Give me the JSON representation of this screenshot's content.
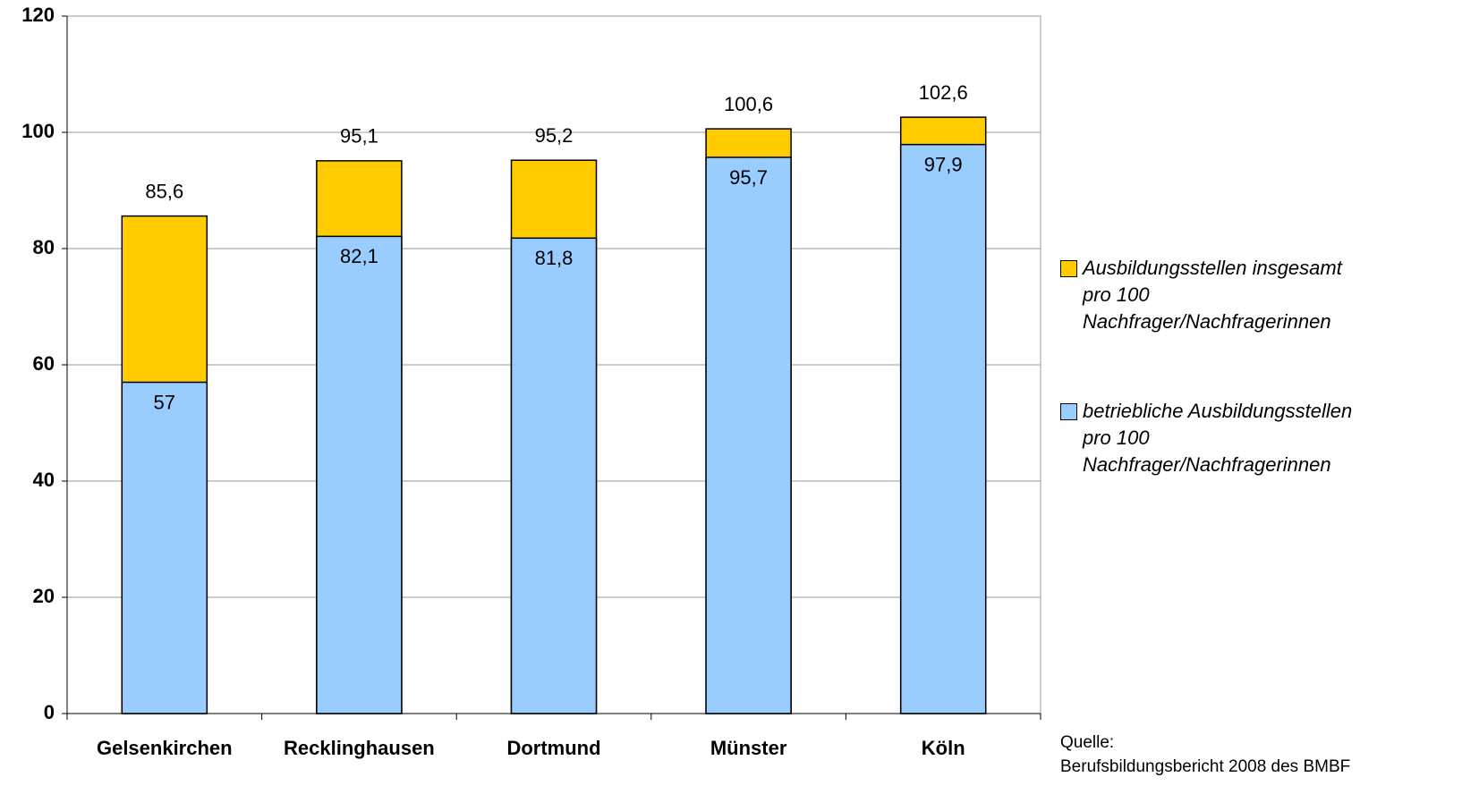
{
  "chart_data": {
    "type": "bar",
    "overlap": true,
    "categories": [
      "Gelsenkirchen",
      "Recklinghausen",
      "Dortmund",
      "Münster",
      "Köln"
    ],
    "series": [
      {
        "name": "Ausbildungsstellen insgesamt pro 100 Nachfrager/Nachfragerinnen",
        "color": "#ffcc00",
        "values": [
          85.6,
          95.1,
          95.2,
          100.6,
          102.6
        ],
        "value_labels": [
          "85,6",
          "95,1",
          "95,2",
          "100,6",
          "102,6"
        ]
      },
      {
        "name": "betriebliche Ausbildungsstellen pro 100 Nachfrager/Nachfragerinnen",
        "color": "#99ccff",
        "values": [
          57,
          82.1,
          81.8,
          95.7,
          97.9
        ],
        "value_labels": [
          "57",
          "82,1",
          "81,8",
          "95,7",
          "97,9"
        ]
      }
    ],
    "ylim": [
      0,
      120
    ],
    "yticks": [
      0,
      20,
      40,
      60,
      80,
      100,
      120
    ],
    "grid": true,
    "legend": "right",
    "source": [
      "Quelle:",
      "Berufsbildungsbericht 2008 des BMBF"
    ]
  }
}
